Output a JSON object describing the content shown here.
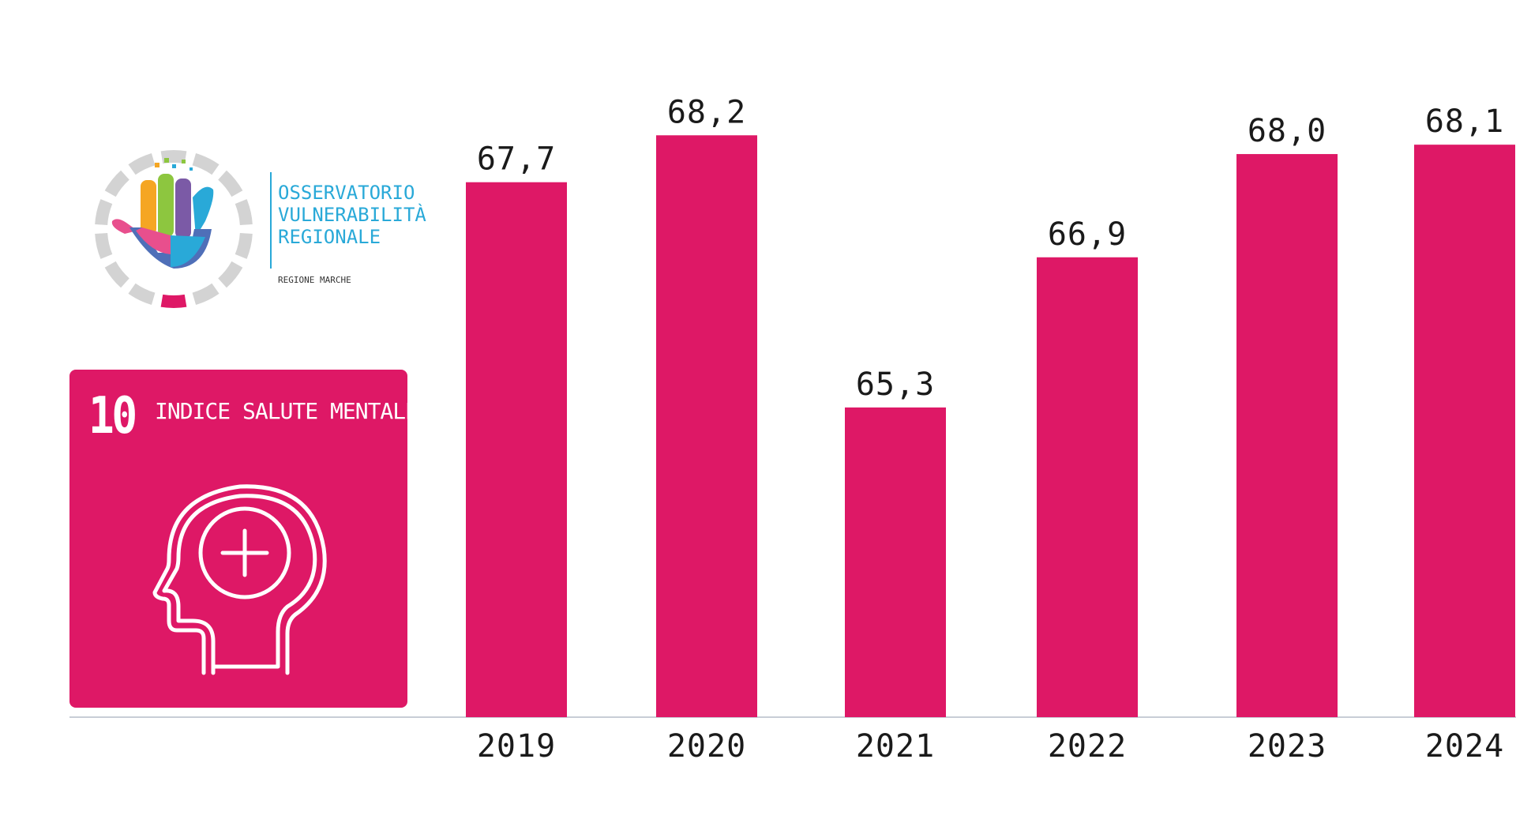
{
  "brand": {
    "logo_lines": [
      "OSSERVATORIO",
      "VULNERABILITÀ",
      "REGIONALE"
    ],
    "logo_sub": "REGIONE MARCHE",
    "accent_color": "#29a9d8"
  },
  "indicator": {
    "number": "10",
    "title": "INDICE SALUTE MENTALE",
    "icon": "head-plus-icon",
    "color": "#de1866"
  },
  "chart_data": {
    "type": "bar",
    "categories": [
      "2019",
      "2020",
      "2021",
      "2022",
      "2023",
      "2024"
    ],
    "values": [
      67.7,
      68.2,
      65.3,
      66.9,
      68.0,
      68.1
    ],
    "value_labels": [
      "67,7",
      "68,2",
      "65,3",
      "66,9",
      "68,0",
      "68,1"
    ],
    "title": "",
    "xlabel": "",
    "ylabel": "",
    "ylim": [
      62,
      68.8
    ],
    "grid": false,
    "bar_color": "#de1866",
    "axis_color": "#c8cdd6"
  }
}
